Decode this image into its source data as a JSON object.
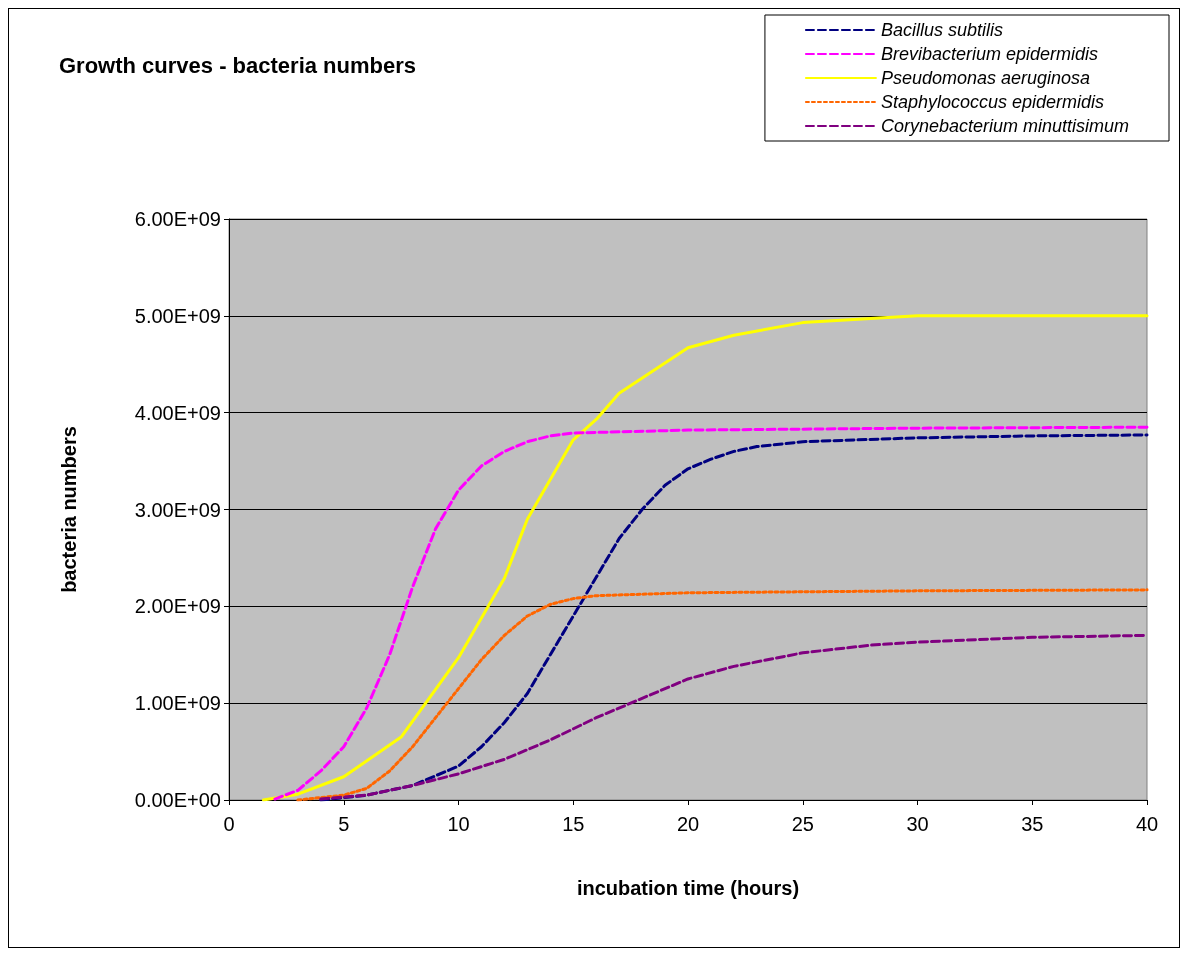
{
  "chart_data": {
    "type": "line",
    "title": "Growth curves - bacteria numbers",
    "xlabel": "incubation time (hours)",
    "ylabel": "bacteria numbers",
    "xlim": [
      0,
      40
    ],
    "xticks": [
      0,
      5,
      10,
      15,
      20,
      25,
      30,
      35,
      40
    ],
    "ylim": [
      0,
      6000000000.0
    ],
    "yticks": [
      {
        "value": 0,
        "label": "0.00E+00"
      },
      {
        "value": 1000000000.0,
        "label": "1.00E+09"
      },
      {
        "value": 2000000000.0,
        "label": "2.00E+09"
      },
      {
        "value": 3000000000.0,
        "label": "3.00E+09"
      },
      {
        "value": 4000000000.0,
        "label": "4.00E+09"
      },
      {
        "value": 5000000000.0,
        "label": "5.00E+09"
      },
      {
        "value": 6000000000.0,
        "label": "6.00E+09"
      }
    ],
    "grid": "y",
    "legend": "top right",
    "marker": "none",
    "series": [
      {
        "name": "Bacillus subtilis",
        "color": "#000080",
        "line_style": "dashed",
        "x": [
          4,
          6,
          8,
          10,
          11,
          12,
          13,
          14,
          15,
          16,
          17,
          18,
          19,
          20,
          21,
          22,
          23,
          25,
          30,
          35,
          40
        ],
        "values": [
          0,
          50000000.0,
          150000000.0,
          350000000.0,
          550000000.0,
          800000000.0,
          1100000000.0,
          1500000000.0,
          1900000000.0,
          2300000000.0,
          2700000000.0,
          3000000000.0,
          3250000000.0,
          3420000000.0,
          3520000000.0,
          3600000000.0,
          3650000000.0,
          3700000000.0,
          3740000000.0,
          3760000000.0,
          3770000000.0
        ]
      },
      {
        "name": "Brevibacterium epidermidis",
        "color": "#ff00ff",
        "line_style": "dashed",
        "x": [
          2,
          3,
          4,
          5,
          6,
          7,
          8,
          9,
          10,
          11,
          12,
          13,
          14,
          15,
          20,
          30,
          40
        ],
        "values": [
          10000000.0,
          100000000.0,
          300000000.0,
          550000000.0,
          950000000.0,
          1500000000.0,
          2200000000.0,
          2800000000.0,
          3200000000.0,
          3450000000.0,
          3600000000.0,
          3700000000.0,
          3760000000.0,
          3790000000.0,
          3820000000.0,
          3840000000.0,
          3850000000.0
        ]
      },
      {
        "name": "Pseudomonas aeruginosa",
        "color": "#ffff00",
        "line_style": "solid",
        "x": [
          1.5,
          3,
          5,
          7.5,
          10,
          12,
          13,
          15,
          16,
          17,
          20,
          22,
          25,
          30,
          40
        ],
        "values": [
          0,
          60000000.0,
          240000000.0,
          650000000.0,
          1470000000.0,
          2290000000.0,
          2900000000.0,
          3720000000.0,
          3930000000.0,
          4200000000.0,
          4670000000.0,
          4800000000.0,
          4930000000.0,
          5000000000.0,
          5000000000.0
        ]
      },
      {
        "name": "Staphylococcus epidermidis",
        "color": "#ff6600",
        "line_style": "dotted",
        "x": [
          3,
          5,
          6,
          7,
          8,
          9,
          10,
          11,
          12,
          13,
          14,
          15,
          16,
          20,
          30,
          40
        ],
        "values": [
          0,
          50000000.0,
          120000000.0,
          300000000.0,
          550000000.0,
          850000000.0,
          1150000000.0,
          1450000000.0,
          1700000000.0,
          1900000000.0,
          2020000000.0,
          2080000000.0,
          2110000000.0,
          2140000000.0,
          2160000000.0,
          2170000000.0
        ]
      },
      {
        "name": "Corynebacterium minuttisimum",
        "color": "#800080",
        "line_style": "dashed",
        "x": [
          4,
          6,
          8,
          10,
          12,
          14,
          16,
          18,
          20,
          22,
          25,
          28,
          30,
          35,
          40
        ],
        "values": [
          10000000.0,
          50000000.0,
          150000000.0,
          270000000.0,
          420000000.0,
          620000000.0,
          850000000.0,
          1050000000.0,
          1250000000.0,
          1380000000.0,
          1520000000.0,
          1600000000.0,
          1630000000.0,
          1680000000.0,
          1700000000.0
        ]
      }
    ]
  }
}
